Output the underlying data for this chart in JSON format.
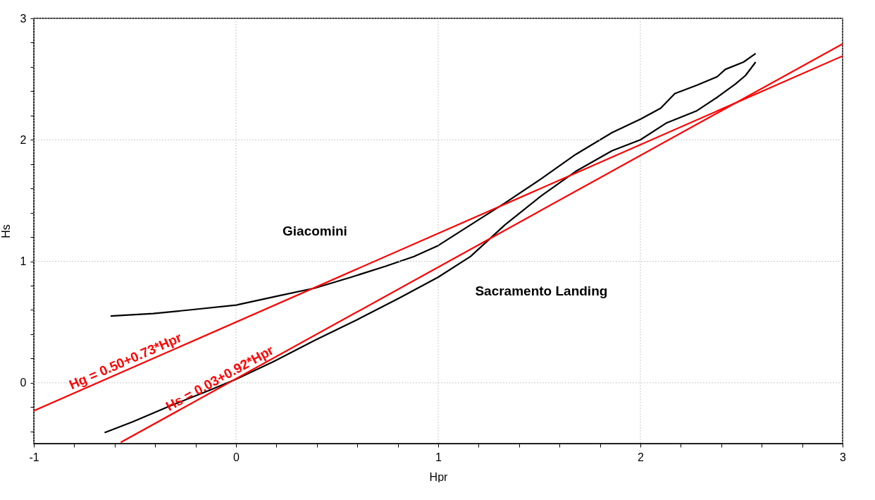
{
  "chart_data": {
    "type": "line",
    "xlabel": "Hpr",
    "ylabel": "Hs",
    "xlim": [
      -1,
      3
    ],
    "ylim": [
      -0.5,
      3
    ],
    "xticks": [
      -1,
      {
        "value": -0.8,
        "label": null
      },
      {
        "value": -0.6,
        "label": null
      },
      {
        "value": -0.4,
        "label": null
      },
      {
        "value": -0.2,
        "label": null
      },
      0,
      {
        "value": 0.2,
        "label": null
      },
      {
        "value": 0.4,
        "label": null
      },
      {
        "value": 0.6,
        "label": null
      },
      {
        "value": 0.8,
        "label": null
      },
      1,
      {
        "value": 1.2,
        "label": null
      },
      {
        "value": 1.4,
        "label": null
      },
      {
        "value": 1.6,
        "label": null
      },
      {
        "value": 1.8,
        "label": null
      },
      2,
      {
        "value": 2.2,
        "label": null
      },
      {
        "value": 2.4,
        "label": null
      },
      {
        "value": 2.6,
        "label": null
      },
      {
        "value": 2.8,
        "label": null
      },
      3
    ],
    "yticks": [
      {
        "value": -0.4,
        "label": null
      },
      {
        "value": -0.2,
        "label": null
      },
      0,
      {
        "value": 0.2,
        "label": null
      },
      {
        "value": 0.4,
        "label": null
      },
      {
        "value": 0.6,
        "label": null
      },
      {
        "value": 0.8,
        "label": null
      },
      1,
      {
        "value": 1.2,
        "label": null
      },
      {
        "value": 1.4,
        "label": null
      },
      {
        "value": 1.6,
        "label": null
      },
      {
        "value": 1.8,
        "label": null
      },
      2,
      {
        "value": 2.2,
        "label": null
      },
      {
        "value": 2.4,
        "label": null
      },
      {
        "value": 2.6,
        "label": null
      },
      {
        "value": 2.8,
        "label": null
      },
      3
    ],
    "grid": true,
    "marker": "none",
    "line_style": "solid",
    "series": [
      {
        "name": "Giacomini",
        "color": "#000000",
        "x": [
          -0.62,
          -0.41,
          -0.23,
          0,
          0.22,
          0.39,
          0.57,
          0.74,
          0.88,
          1.0,
          1.16,
          1.33,
          1.51,
          1.68,
          1.86,
          2.0,
          2.1,
          2.17,
          2.28,
          2.38,
          2.42,
          2.51,
          2.57
        ],
        "values": [
          0.55,
          0.57,
          0.6,
          0.64,
          0.72,
          0.78,
          0.87,
          0.96,
          1.04,
          1.13,
          1.3,
          1.48,
          1.68,
          1.88,
          2.06,
          2.17,
          2.26,
          2.38,
          2.45,
          2.52,
          2.58,
          2.64,
          2.71
        ]
      },
      {
        "name": "Sacramento Landing",
        "color": "#000000",
        "x": [
          -0.65,
          -0.51,
          -0.34,
          -0.13,
          0,
          0.18,
          0.39,
          0.6,
          0.81,
          1.0,
          1.16,
          1.33,
          1.51,
          1.68,
          1.86,
          2.0,
          2.13,
          2.28,
          2.38,
          2.47,
          2.52,
          2.57
        ],
        "values": [
          -0.41,
          -0.32,
          -0.2,
          -0.06,
          0.03,
          0.17,
          0.35,
          0.52,
          0.7,
          0.87,
          1.04,
          1.3,
          1.54,
          1.74,
          1.91,
          2.0,
          2.14,
          2.24,
          2.35,
          2.46,
          2.53,
          2.64
        ]
      },
      {
        "type": "line",
        "color": "#ff0000",
        "x": [
          -1,
          3
        ],
        "values": [
          -0.23,
          2.69
        ]
      },
      {
        "type": "line",
        "color": "#ff0000",
        "x": [
          -0.57,
          3
        ],
        "values": [
          -0.49,
          2.79
        ]
      }
    ],
    "annotations": [
      {
        "text": "Hg = 0.50+0.73*Hpr",
        "x": -0.53,
        "y": 0.113
      },
      {
        "text": "Hs = 0.03+0.92*Hpr",
        "x": -0.06,
        "y": -0.025
      }
    ]
  }
}
